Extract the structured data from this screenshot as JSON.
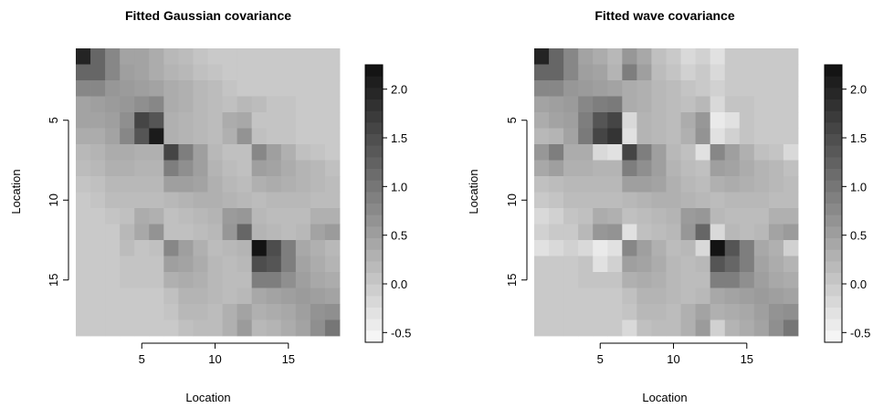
{
  "chart_data": [
    {
      "type": "heatmap",
      "title": "Fitted Gaussian covariance",
      "xlabel": "Location",
      "ylabel": "Location",
      "x_ticks": [
        5,
        10,
        15
      ],
      "y_ticks": [
        5,
        10,
        15
      ],
      "xlim": [
        0.5,
        18.5
      ],
      "ylim": [
        0.5,
        18.5
      ],
      "colorbar": {
        "ticks": [
          2.0,
          1.5,
          1.0,
          0.5,
          0.0,
          -0.5
        ],
        "tick_labels": [
          "2.0",
          "1.5",
          "1.0",
          "0.5",
          "0.0",
          "-0.5"
        ],
        "range": [
          -0.6,
          2.25
        ]
      },
      "palette": "grayscale",
      "z": [
        [
          2.0,
          1.2,
          0.8,
          0.45,
          0.45,
          0.35,
          0.2,
          0.15,
          0.05,
          0.0,
          0.0,
          0.0,
          0.0,
          0.0,
          0.0,
          0.0,
          0.0,
          0.0
        ],
        [
          1.2,
          1.2,
          0.8,
          0.5,
          0.45,
          0.35,
          0.25,
          0.2,
          0.1,
          0.05,
          0.0,
          0.0,
          0.0,
          0.0,
          0.0,
          0.0,
          0.0,
          0.0
        ],
        [
          0.8,
          0.8,
          0.6,
          0.55,
          0.5,
          0.45,
          0.35,
          0.3,
          0.2,
          0.15,
          0.05,
          0.0,
          0.0,
          0.0,
          0.0,
          0.0,
          0.0,
          0.0
        ],
        [
          0.45,
          0.5,
          0.55,
          0.6,
          0.7,
          0.8,
          0.35,
          0.3,
          0.2,
          0.15,
          0.1,
          0.2,
          0.15,
          0.05,
          0.05,
          0.0,
          0.0,
          0.0
        ],
        [
          0.45,
          0.45,
          0.5,
          0.7,
          1.6,
          1.4,
          0.3,
          0.25,
          0.2,
          0.15,
          0.35,
          0.4,
          0.05,
          0.05,
          0.05,
          0.0,
          0.0,
          0.0
        ],
        [
          0.35,
          0.35,
          0.45,
          0.8,
          1.4,
          2.1,
          0.3,
          0.25,
          0.2,
          0.15,
          0.3,
          0.65,
          0.1,
          0.05,
          0.05,
          0.0,
          0.0,
          0.0
        ],
        [
          0.2,
          0.25,
          0.35,
          0.35,
          0.3,
          0.3,
          1.6,
          0.9,
          0.5,
          0.2,
          0.1,
          0.1,
          0.8,
          0.5,
          0.3,
          0.1,
          0.05,
          0.0
        ],
        [
          0.15,
          0.2,
          0.3,
          0.3,
          0.25,
          0.25,
          0.9,
          0.7,
          0.5,
          0.25,
          0.15,
          0.1,
          0.5,
          0.45,
          0.35,
          0.25,
          0.2,
          0.1
        ],
        [
          0.05,
          0.1,
          0.2,
          0.2,
          0.2,
          0.2,
          0.5,
          0.5,
          0.45,
          0.3,
          0.2,
          0.15,
          0.3,
          0.35,
          0.3,
          0.25,
          0.2,
          0.15
        ],
        [
          0.0,
          0.05,
          0.15,
          0.15,
          0.15,
          0.15,
          0.2,
          0.25,
          0.3,
          0.3,
          0.25,
          0.2,
          0.15,
          0.2,
          0.2,
          0.2,
          0.15,
          0.15
        ],
        [
          0.0,
          0.0,
          0.05,
          0.1,
          0.35,
          0.3,
          0.1,
          0.15,
          0.2,
          0.25,
          0.55,
          0.6,
          0.2,
          0.15,
          0.15,
          0.15,
          0.3,
          0.3
        ],
        [
          0.0,
          0.0,
          0.0,
          0.2,
          0.4,
          0.65,
          0.1,
          0.1,
          0.15,
          0.2,
          0.6,
          1.2,
          0.25,
          0.2,
          0.15,
          0.2,
          0.45,
          0.55
        ],
        [
          0.0,
          0.0,
          0.0,
          0.15,
          0.05,
          0.1,
          0.8,
          0.5,
          0.3,
          0.15,
          0.2,
          0.25,
          2.2,
          1.5,
          0.9,
          0.4,
          0.3,
          0.2
        ],
        [
          0.0,
          0.0,
          0.0,
          0.05,
          0.05,
          0.05,
          0.5,
          0.45,
          0.35,
          0.2,
          0.15,
          0.2,
          1.5,
          1.4,
          0.9,
          0.45,
          0.35,
          0.25
        ],
        [
          0.0,
          0.0,
          0.0,
          0.05,
          0.05,
          0.05,
          0.3,
          0.35,
          0.3,
          0.2,
          0.15,
          0.15,
          0.9,
          0.9,
          0.7,
          0.5,
          0.4,
          0.35
        ],
        [
          0.0,
          0.0,
          0.0,
          0.0,
          0.0,
          0.0,
          0.1,
          0.25,
          0.25,
          0.2,
          0.15,
          0.2,
          0.4,
          0.45,
          0.5,
          0.55,
          0.5,
          0.45
        ],
        [
          0.0,
          0.0,
          0.0,
          0.0,
          0.0,
          0.0,
          0.05,
          0.2,
          0.2,
          0.15,
          0.3,
          0.45,
          0.3,
          0.35,
          0.4,
          0.5,
          0.65,
          0.7
        ],
        [
          0.0,
          0.0,
          0.0,
          0.0,
          0.0,
          0.0,
          0.0,
          0.1,
          0.15,
          0.15,
          0.3,
          0.55,
          0.2,
          0.25,
          0.35,
          0.45,
          0.7,
          1.0
        ]
      ]
    },
    {
      "type": "heatmap",
      "title": "Fitted wave covariance",
      "xlabel": "Location",
      "ylabel": "Location",
      "x_ticks": [
        5,
        10,
        15
      ],
      "y_ticks": [
        5,
        10,
        15
      ],
      "xlim": [
        0.5,
        18.5
      ],
      "ylim": [
        0.5,
        18.5
      ],
      "colorbar": {
        "ticks": [
          2.0,
          1.5,
          1.0,
          0.5,
          0.0,
          -0.5
        ],
        "tick_labels": [
          "2.0",
          "1.5",
          "1.0",
          "0.5",
          "0.0",
          "-0.5"
        ],
        "range": [
          -0.6,
          2.25
        ]
      },
      "palette": "grayscale",
      "z": [
        [
          2.0,
          1.2,
          0.8,
          0.45,
          0.35,
          0.2,
          0.6,
          0.4,
          0.1,
          0.0,
          -0.2,
          -0.1,
          -0.3,
          0.0,
          0.0,
          0.0,
          0.0,
          0.0
        ],
        [
          1.2,
          1.2,
          0.8,
          0.5,
          0.45,
          0.25,
          0.9,
          0.5,
          0.15,
          0.05,
          -0.1,
          0.0,
          -0.2,
          0.0,
          0.0,
          0.0,
          0.0,
          0.0
        ],
        [
          0.8,
          0.8,
          0.6,
          0.55,
          0.5,
          0.45,
          0.35,
          0.3,
          0.2,
          0.15,
          0.05,
          0.0,
          -0.1,
          0.0,
          0.0,
          0.0,
          0.0,
          0.0
        ],
        [
          0.45,
          0.5,
          0.55,
          0.8,
          0.9,
          0.95,
          0.35,
          0.3,
          0.2,
          0.15,
          0.1,
          0.2,
          -0.2,
          0.05,
          0.05,
          0.0,
          0.0,
          0.0
        ],
        [
          0.35,
          0.45,
          0.5,
          0.9,
          1.4,
          1.6,
          -0.2,
          0.25,
          0.2,
          0.15,
          0.35,
          0.6,
          -0.4,
          -0.3,
          0.05,
          0.0,
          0.0,
          0.0
        ],
        [
          0.2,
          0.25,
          0.45,
          0.95,
          1.6,
          1.8,
          -0.3,
          0.25,
          0.2,
          0.15,
          0.3,
          0.65,
          -0.3,
          -0.1,
          0.05,
          0.0,
          0.0,
          0.0
        ],
        [
          0.6,
          0.9,
          0.35,
          0.35,
          -0.2,
          -0.3,
          1.6,
          0.9,
          0.5,
          0.2,
          0.1,
          -0.3,
          0.8,
          0.5,
          0.3,
          0.1,
          0.05,
          -0.2
        ],
        [
          0.4,
          0.5,
          0.3,
          0.3,
          0.25,
          0.25,
          0.9,
          0.7,
          0.5,
          0.25,
          0.15,
          0.1,
          0.5,
          0.45,
          0.35,
          0.25,
          0.2,
          0.1
        ],
        [
          0.1,
          0.15,
          0.2,
          0.2,
          0.2,
          0.2,
          0.5,
          0.5,
          0.45,
          0.3,
          0.2,
          0.15,
          0.3,
          0.35,
          0.3,
          0.25,
          0.2,
          0.15
        ],
        [
          0.0,
          0.05,
          0.15,
          0.15,
          0.15,
          0.15,
          0.2,
          0.25,
          0.3,
          0.3,
          0.25,
          0.2,
          0.15,
          0.2,
          0.2,
          0.2,
          0.15,
          0.15
        ],
        [
          -0.2,
          -0.1,
          0.05,
          0.1,
          0.35,
          0.3,
          0.1,
          0.15,
          0.2,
          0.25,
          0.55,
          0.6,
          0.2,
          0.15,
          0.15,
          0.15,
          0.3,
          0.3
        ],
        [
          -0.1,
          0.0,
          0.0,
          0.2,
          0.6,
          0.65,
          -0.3,
          0.1,
          0.15,
          0.2,
          0.6,
          1.2,
          -0.2,
          0.2,
          0.15,
          0.2,
          0.45,
          0.55
        ],
        [
          -0.3,
          -0.2,
          -0.1,
          -0.2,
          -0.4,
          -0.3,
          0.8,
          0.5,
          0.3,
          0.15,
          0.2,
          -0.2,
          2.2,
          1.4,
          0.9,
          0.4,
          0.3,
          -0.1
        ],
        [
          0.0,
          0.0,
          0.0,
          0.05,
          -0.3,
          -0.1,
          0.5,
          0.45,
          0.35,
          0.2,
          0.15,
          0.2,
          1.4,
          1.2,
          0.9,
          0.45,
          0.35,
          0.25
        ],
        [
          0.0,
          0.0,
          0.0,
          0.05,
          0.05,
          0.05,
          0.3,
          0.35,
          0.3,
          0.2,
          0.15,
          0.15,
          0.9,
          0.9,
          0.7,
          0.5,
          0.4,
          0.35
        ],
        [
          0.0,
          0.0,
          0.0,
          0.0,
          0.0,
          0.0,
          0.1,
          0.25,
          0.25,
          0.2,
          0.15,
          0.2,
          0.4,
          0.45,
          0.5,
          0.55,
          0.5,
          0.45
        ],
        [
          0.0,
          0.0,
          0.0,
          0.0,
          0.0,
          0.0,
          0.05,
          0.2,
          0.2,
          0.15,
          0.3,
          0.45,
          0.3,
          0.35,
          0.4,
          0.5,
          0.65,
          0.7
        ],
        [
          0.0,
          0.0,
          0.0,
          0.0,
          0.0,
          0.0,
          -0.2,
          0.1,
          0.15,
          0.15,
          0.3,
          0.55,
          -0.1,
          0.25,
          0.35,
          0.45,
          0.7,
          1.0
        ]
      ]
    }
  ]
}
